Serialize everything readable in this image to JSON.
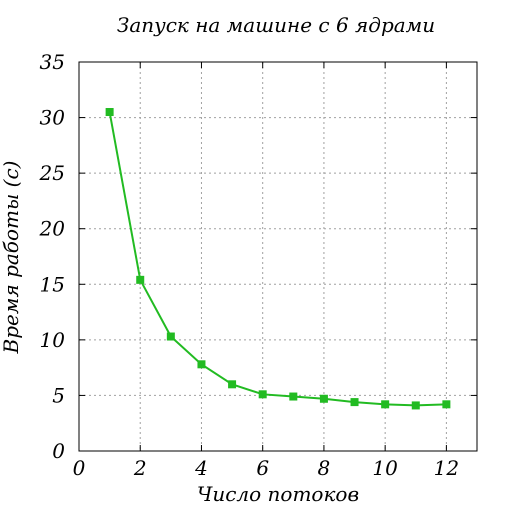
{
  "chart_data": {
    "type": "line",
    "title": "Запуск на машине с 6 ядрами",
    "xlabel": "Число потоков",
    "ylabel": "Время работы (с)",
    "xlim": [
      0,
      13
    ],
    "ylim": [
      0,
      35
    ],
    "xticks": [
      0,
      2,
      4,
      6,
      8,
      10,
      12
    ],
    "yticks": [
      0,
      5,
      10,
      15,
      20,
      25,
      30,
      35
    ],
    "grid": true,
    "series": [
      {
        "color": "#22bb22",
        "marker": "square",
        "x": [
          1,
          2,
          3,
          4,
          5,
          6,
          7,
          8,
          9,
          10,
          11,
          12
        ],
        "y": [
          30.5,
          15.4,
          10.3,
          7.8,
          6.0,
          5.1,
          4.9,
          4.7,
          4.4,
          4.2,
          4.1,
          4.2
        ]
      }
    ]
  }
}
